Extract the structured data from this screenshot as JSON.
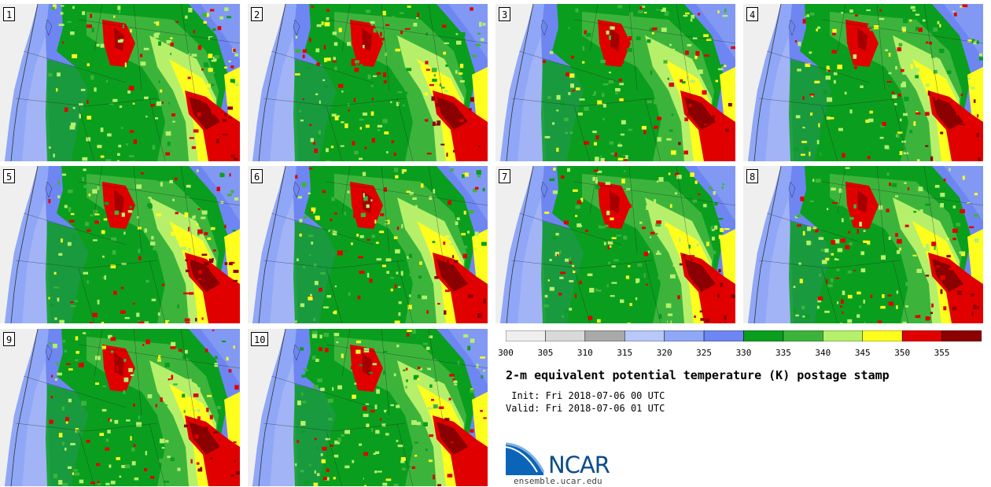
{
  "panels": [
    {
      "label": "1"
    },
    {
      "label": "2"
    },
    {
      "label": "3"
    },
    {
      "label": "4"
    },
    {
      "label": "5"
    },
    {
      "label": "6"
    },
    {
      "label": "7"
    },
    {
      "label": "8"
    },
    {
      "label": "9"
    },
    {
      "label": "10"
    }
  ],
  "colorbar": {
    "tick_labels": [
      "300",
      "305",
      "310",
      "315",
      "320",
      "325",
      "330",
      "335",
      "340",
      "345",
      "350",
      "355"
    ],
    "colors": [
      "#efefef",
      "#d9d9d9",
      "#a9a9a9",
      "#b8c8f8",
      "#8fa7f6",
      "#6e86f1",
      "#0a9e1e",
      "#3cb43c",
      "#b6f06a",
      "#ffff1e",
      "#e10000",
      "#8b0000"
    ]
  },
  "title": "2-m equivalent potential temperature (K) postage stamp",
  "init_line": " Init: Fri 2018-07-06 00 UTC",
  "valid_line": "Valid: Fri 2018-07-06 01 UTC",
  "logo": {
    "text": "NCAR",
    "website": "ensemble.ucar.edu"
  }
}
